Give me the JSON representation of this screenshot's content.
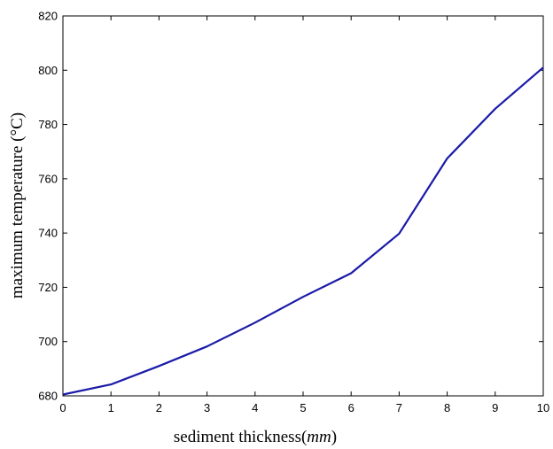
{
  "chart_data": {
    "type": "line",
    "title": "",
    "xlabel": {
      "main": "sediment thickness",
      "paren_open": "(",
      "unit": "mm",
      "paren_close": ")"
    },
    "ylabel": "maximum temperature  (°C)",
    "xlim": [
      0,
      10
    ],
    "ylim": [
      680,
      820
    ],
    "x_ticks": [
      "0",
      "1",
      "2",
      "3",
      "4",
      "5",
      "6",
      "7",
      "8",
      "9",
      "10"
    ],
    "y_ticks": [
      "680",
      "700",
      "720",
      "740",
      "760",
      "780",
      "800",
      "820"
    ],
    "grid": false,
    "series": [
      {
        "color": "#1a1aa8",
        "x": [
          0,
          1,
          2,
          3,
          4,
          5,
          6,
          7,
          8,
          9,
          10
        ],
        "y": [
          680.5,
          684.2,
          691.0,
          698.2,
          707.0,
          716.5,
          725.2,
          739.8,
          767.5,
          785.8,
          801.0
        ]
      }
    ]
  }
}
